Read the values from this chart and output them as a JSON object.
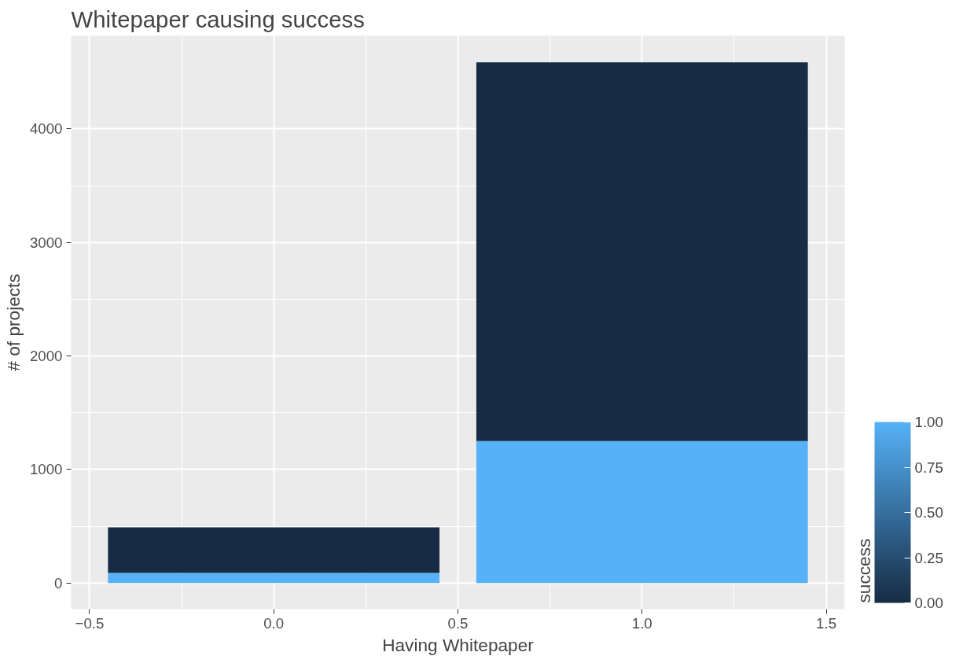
{
  "chart_data": {
    "type": "bar",
    "title": "Whitepaper causing success",
    "xlabel": "Having Whitepaper",
    "ylabel": "# of projects",
    "x": [
      0,
      1
    ],
    "stacked": true,
    "series": [
      {
        "color": "#56b1f7",
        "values": [
          91,
          1251
        ]
      },
      {
        "color": "#172c44",
        "values": [
          399,
          3335
        ]
      }
    ],
    "xlim": [
      -0.55,
      1.55
    ],
    "xticks": [
      {
        "value": -0.5,
        "label": "−0.5"
      },
      {
        "value": 0,
        "label": "0.0"
      },
      {
        "value": 0.5,
        "label": "0.5"
      },
      {
        "value": 1,
        "label": "1.0"
      },
      {
        "value": 1.5,
        "label": "1.5"
      }
    ],
    "ylim": [
      -230,
      4820
    ],
    "yticks": [
      0,
      1000,
      2000,
      3000,
      4000
    ],
    "grid": true,
    "clabel": "success",
    "clim": [
      0,
      1
    ],
    "cticks": [
      {
        "value": 0,
        "label": "0.00"
      },
      {
        "value": 0.25,
        "label": "0.25"
      },
      {
        "value": 0.5,
        "label": "0.50"
      },
      {
        "value": 0.75,
        "label": "0.75"
      },
      {
        "value": 1,
        "label": "1.00"
      }
    ]
  }
}
